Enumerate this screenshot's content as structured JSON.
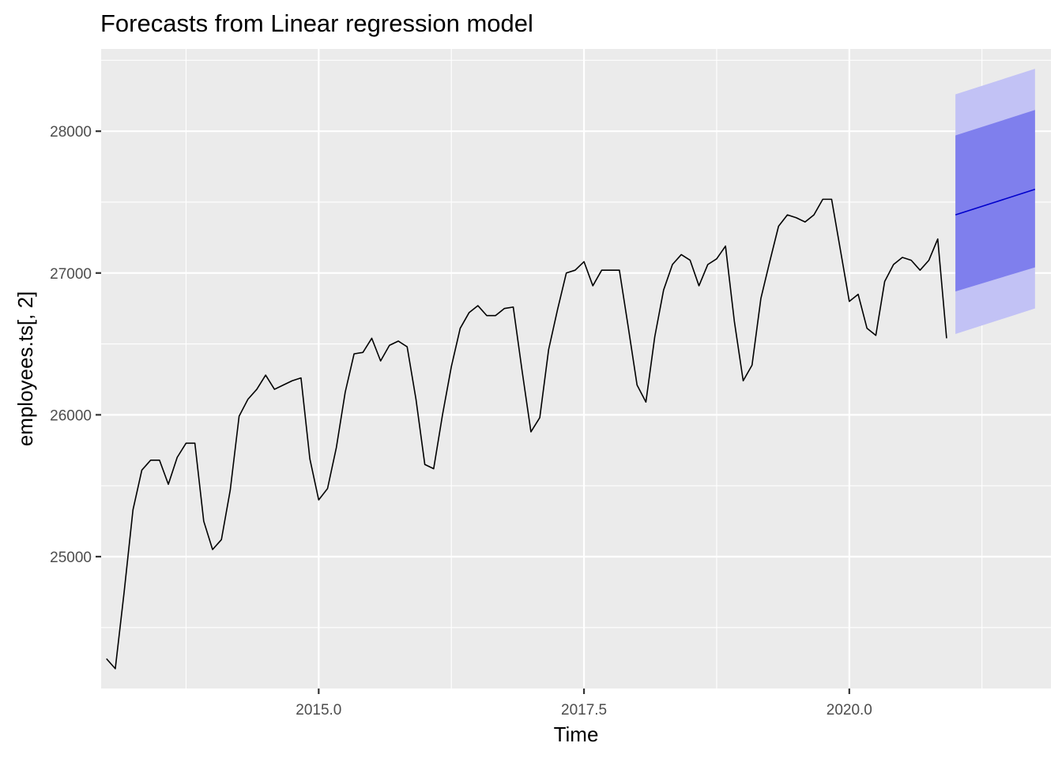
{
  "chart_data": {
    "type": "line",
    "title": "Forecasts from Linear regression model",
    "xlabel": "Time",
    "ylabel": "employees.ts[, 2]",
    "xlim": [
      2012.95,
      2021.9
    ],
    "ylim": [
      24070,
      28580
    ],
    "x_ticks": [
      {
        "value": 2015,
        "label": "2015.0"
      },
      {
        "value": 2017.5,
        "label": "2017.5"
      },
      {
        "value": 2020,
        "label": "2020.0"
      }
    ],
    "y_ticks": [
      {
        "value": 25000,
        "label": "25000"
      },
      {
        "value": 26000,
        "label": "26000"
      },
      {
        "value": 27000,
        "label": "27000"
      },
      {
        "value": 28000,
        "label": "28000"
      }
    ],
    "grid": true,
    "colors": {
      "panel": "#ebebeb",
      "grid": "#ffffff",
      "line": "#000000",
      "forecast_line": "#0000cc",
      "band_80": "#7f7fed",
      "band_95": "#c2c2f5"
    },
    "series": [
      {
        "role": "observed",
        "x_start": 2013.0,
        "step": 0.08333333,
        "values": [
          24280,
          24210,
          24750,
          25330,
          25610,
          25680,
          25680,
          25510,
          25700,
          25800,
          25800,
          25250,
          25050,
          25120,
          25470,
          25990,
          26110,
          26180,
          26280,
          26180,
          26210,
          26240,
          26260,
          25690,
          25400,
          25480,
          25770,
          26160,
          26430,
          26440,
          26540,
          26380,
          26490,
          26520,
          26480,
          26110,
          25650,
          25620,
          26000,
          26340,
          26610,
          26720,
          26770,
          26700,
          26700,
          26750,
          26760,
          26310,
          25880,
          25980,
          26460,
          26740,
          27000,
          27020,
          27080,
          26910,
          27020,
          27020,
          27020,
          26620,
          26210,
          26090,
          26550,
          26880,
          27060,
          27130,
          27090,
          26910,
          27060,
          27100,
          27190,
          26660,
          26240,
          26350,
          26820,
          27080,
          27330,
          27410,
          27390,
          27360,
          27410,
          27520,
          27520,
          27160,
          26800,
          26850,
          26610,
          26560,
          26940,
          27060,
          27110,
          27090,
          27020,
          27090,
          27240,
          26540
        ]
      },
      {
        "role": "forecast",
        "x": [
          2021.0,
          2021.75
        ],
        "mean": [
          27410,
          27590
        ],
        "lo80": [
          26870,
          27040
        ],
        "hi80": [
          27970,
          28150
        ],
        "lo95": [
          26570,
          26750
        ],
        "hi95": [
          28260,
          28440
        ]
      }
    ]
  }
}
